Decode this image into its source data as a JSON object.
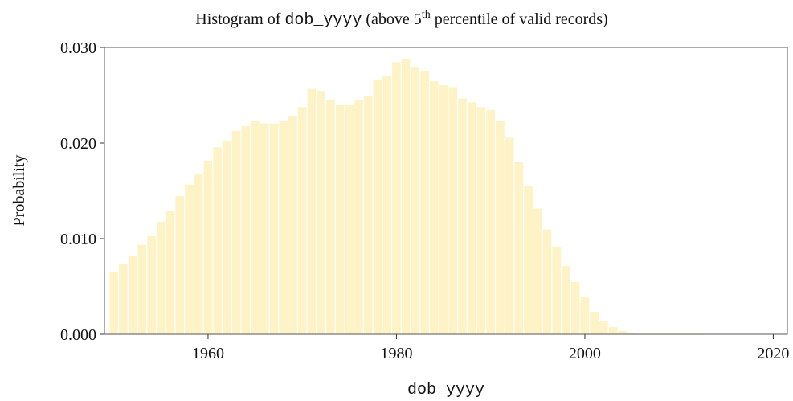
{
  "chart_data": {
    "type": "histogram",
    "title_parts": [
      "Histogram of ",
      "dob_yyyy",
      " (above 5",
      "th",
      " percentile of valid records)"
    ],
    "xlabel": "dob_yyyy",
    "ylabel": "Probability",
    "bins": [
      1949.5,
      1950.5,
      1951.5,
      1952.5,
      1953.5,
      1954.5,
      1955.5,
      1956.5,
      1957.5,
      1958.5,
      1959.5,
      1960.5,
      1961.5,
      1962.5,
      1963.5,
      1964.5,
      1965.5,
      1966.5,
      1967.5,
      1968.5,
      1969.5,
      1970.5,
      1971.5,
      1972.5,
      1973.5,
      1974.5,
      1975.5,
      1976.5,
      1977.5,
      1978.5,
      1979.5,
      1980.5,
      1981.5,
      1982.5,
      1983.5,
      1984.5,
      1985.5,
      1986.5,
      1987.5,
      1988.5,
      1989.5,
      1990.5,
      1991.5,
      1992.5,
      1993.5,
      1994.5,
      1995.5,
      1996.5,
      1997.5,
      1998.5,
      1999.5,
      2000.5,
      2001.5,
      2002.5,
      2003.5,
      2004.5,
      2005.5,
      2006.5,
      2007.5,
      2008.5,
      2009.5,
      2010.5,
      2011.5,
      2012.5,
      2013.5,
      2014.5,
      2015.5,
      2016.5,
      2017.5,
      2018.5,
      2019.5,
      2020.5
    ],
    "values": [
      0.0065,
      0.0074,
      0.0082,
      0.0094,
      0.0103,
      0.0118,
      0.0129,
      0.0145,
      0.0157,
      0.0168,
      0.0182,
      0.0196,
      0.0203,
      0.0213,
      0.0218,
      0.0224,
      0.0221,
      0.0221,
      0.0224,
      0.0229,
      0.0238,
      0.0257,
      0.0255,
      0.0245,
      0.024,
      0.024,
      0.0245,
      0.025,
      0.0267,
      0.0271,
      0.0285,
      0.0288,
      0.028,
      0.0276,
      0.0265,
      0.0261,
      0.0259,
      0.0247,
      0.0243,
      0.0238,
      0.0235,
      0.0224,
      0.0206,
      0.0181,
      0.0156,
      0.0132,
      0.011,
      0.0092,
      0.0072,
      0.0055,
      0.0039,
      0.0024,
      0.0014,
      0.0008,
      0.0004,
      0.0002,
      0.0001,
      0.0001,
      0.0001,
      0.0001,
      0.0001,
      0.0001,
      0.0001,
      5e-05,
      5e-05,
      5e-05,
      5e-05,
      5e-05,
      5e-05,
      5e-05,
      5e-05
    ],
    "color": "#fdf3c6",
    "xlim": [
      1949,
      2021.5
    ],
    "ylim": [
      0,
      0.03
    ],
    "xticks": [
      1960,
      1980,
      2000,
      2020
    ],
    "yticks": [
      {
        "value": 0,
        "label": "0.000"
      },
      {
        "value": 0.01,
        "label": "0.010"
      },
      {
        "value": 0.02,
        "label": "0.020"
      },
      {
        "value": 0.03,
        "label": "0.030"
      }
    ]
  }
}
